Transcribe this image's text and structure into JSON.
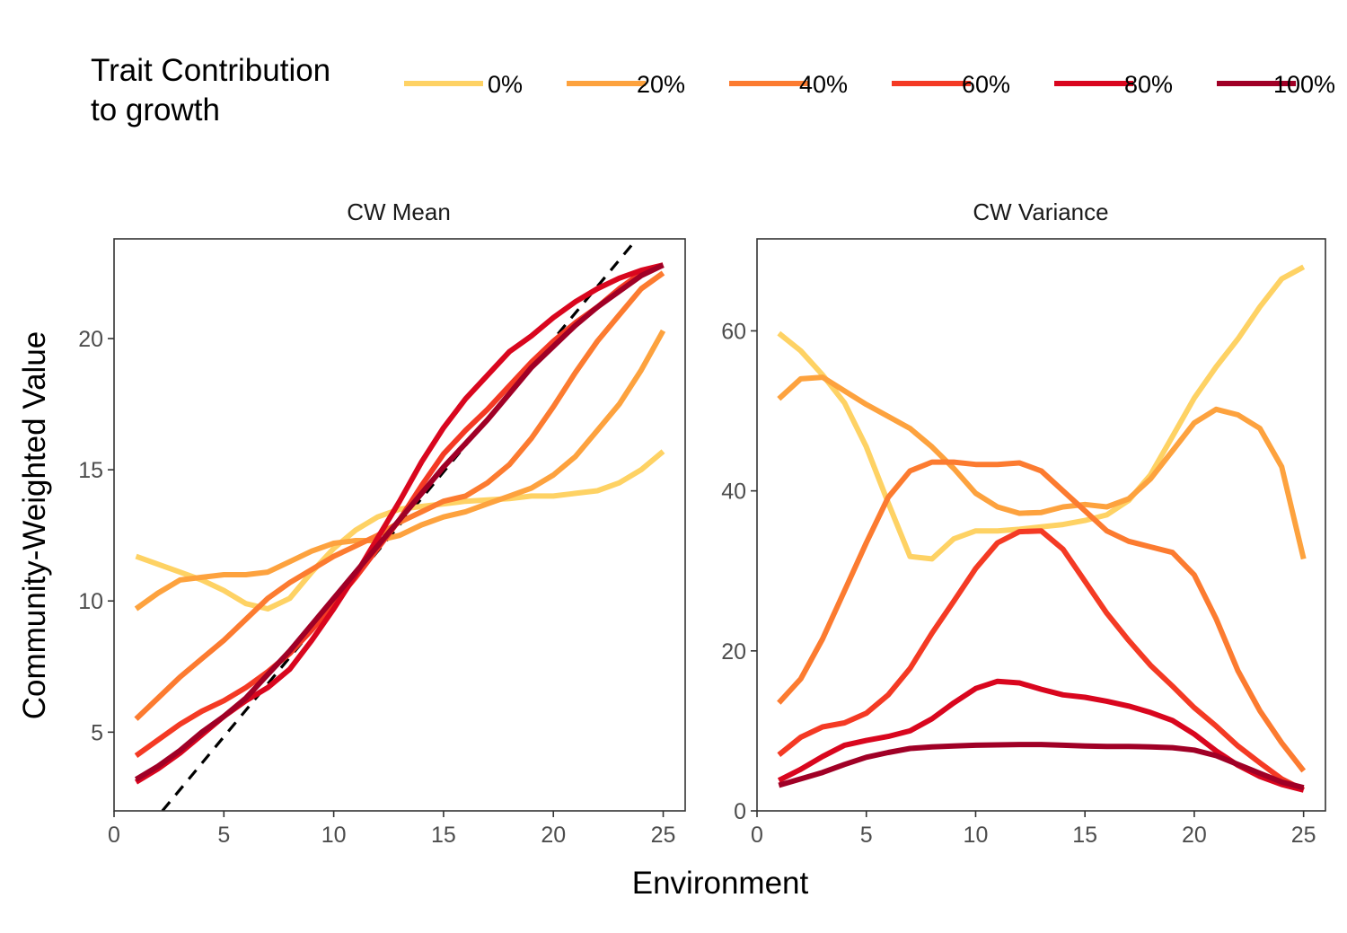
{
  "legend": {
    "title_line1": "Trait Contribution",
    "title_line2": "to growth"
  },
  "x_axis_title": "Environment",
  "y_axis_title": "Community-Weighted Value",
  "colors": {
    "0%": "#FED264",
    "20%": "#FDA23E",
    "40%": "#FC7B30",
    "60%": "#F43A24",
    "80%": "#D9061E",
    "100%": "#A00026",
    "reference_line": "#000000"
  },
  "chart_data": [
    {
      "type": "line",
      "title": "CW Mean",
      "xlim": [
        0,
        26
      ],
      "ylim": [
        2,
        23.8
      ],
      "xticks": [
        0,
        5,
        10,
        15,
        20,
        25
      ],
      "yticks": [
        5,
        10,
        15,
        20
      ],
      "xlabel": "Environment",
      "ylabel": "Community-Weighted Value",
      "grid": false,
      "legend_position": "top",
      "reference_line": {
        "style": "dashed",
        "color": "#000000",
        "points": [
          [
            2.2,
            2.0
          ],
          [
            23.8,
            23.8
          ]
        ]
      },
      "x": [
        1,
        2,
        3,
        4,
        5,
        6,
        7,
        8,
        9,
        10,
        11,
        12,
        13,
        14,
        15,
        16,
        17,
        18,
        19,
        20,
        21,
        22,
        23,
        24,
        25
      ],
      "series": [
        {
          "name": "0%",
          "values": [
            11.7,
            11.4,
            11.1,
            10.8,
            10.4,
            9.9,
            9.7,
            10.1,
            11.1,
            12.0,
            12.7,
            13.2,
            13.5,
            13.6,
            13.7,
            13.8,
            13.85,
            13.9,
            14.0,
            14.0,
            14.1,
            14.2,
            14.5,
            15.0,
            15.7
          ]
        },
        {
          "name": "20%",
          "values": [
            9.7,
            10.3,
            10.8,
            10.9,
            11.0,
            11.0,
            11.1,
            11.5,
            11.9,
            12.2,
            12.3,
            12.3,
            12.5,
            12.9,
            13.2,
            13.4,
            13.7,
            14.0,
            14.3,
            14.8,
            15.5,
            16.5,
            17.5,
            18.8,
            20.3
          ]
        },
        {
          "name": "40%",
          "values": [
            5.5,
            6.3,
            7.1,
            7.8,
            8.5,
            9.3,
            10.1,
            10.7,
            11.2,
            11.7,
            12.1,
            12.5,
            13.0,
            13.4,
            13.8,
            14.0,
            14.5,
            15.2,
            16.2,
            17.4,
            18.7,
            19.9,
            20.9,
            21.9,
            22.5
          ]
        },
        {
          "name": "60%",
          "values": [
            4.1,
            4.7,
            5.3,
            5.8,
            6.2,
            6.7,
            7.3,
            8.0,
            8.9,
            9.9,
            10.9,
            12.0,
            13.1,
            14.4,
            15.6,
            16.5,
            17.3,
            18.2,
            19.1,
            19.9,
            20.6,
            21.2,
            21.9,
            22.5,
            22.8
          ]
        },
        {
          "name": "80%",
          "values": [
            3.1,
            3.6,
            4.2,
            4.9,
            5.6,
            6.2,
            6.7,
            7.4,
            8.5,
            9.7,
            11.0,
            12.4,
            13.8,
            15.3,
            16.6,
            17.7,
            18.6,
            19.5,
            20.1,
            20.8,
            21.4,
            21.9,
            22.3,
            22.6,
            22.8
          ]
        },
        {
          "name": "100%",
          "values": [
            3.2,
            3.7,
            4.3,
            5.0,
            5.6,
            6.3,
            7.2,
            8.1,
            9.1,
            10.1,
            11.1,
            12.1,
            13.1,
            14.1,
            15.1,
            16.0,
            16.9,
            17.9,
            18.9,
            19.7,
            20.5,
            21.2,
            21.8,
            22.4,
            22.8
          ]
        }
      ]
    },
    {
      "type": "line",
      "title": "CW Variance",
      "xlim": [
        0,
        26
      ],
      "ylim": [
        0,
        71.5
      ],
      "xticks": [
        0,
        5,
        10,
        15,
        20,
        25
      ],
      "yticks": [
        0,
        20,
        40,
        60
      ],
      "xlabel": "Environment",
      "grid": false,
      "x": [
        1,
        2,
        3,
        4,
        5,
        6,
        7,
        8,
        9,
        10,
        11,
        12,
        13,
        14,
        15,
        16,
        17,
        18,
        19,
        20,
        21,
        22,
        23,
        24,
        25
      ],
      "series": [
        {
          "name": "0%",
          "values": [
            59.7,
            57.5,
            54.5,
            51.0,
            45.5,
            38.5,
            31.8,
            31.5,
            34.0,
            35.0,
            35.0,
            35.2,
            35.5,
            35.8,
            36.3,
            37.0,
            38.8,
            42.0,
            46.8,
            51.6,
            55.5,
            59.0,
            63.0,
            66.5,
            68.0
          ]
        },
        {
          "name": "20%",
          "values": [
            51.5,
            54.0,
            54.2,
            52.5,
            50.8,
            49.3,
            47.8,
            45.5,
            42.8,
            39.7,
            38.0,
            37.2,
            37.3,
            38.0,
            38.3,
            38.0,
            39.0,
            41.5,
            45.0,
            48.5,
            50.2,
            49.5,
            47.8,
            43.0,
            31.5
          ]
        },
        {
          "name": "40%",
          "values": [
            13.5,
            16.5,
            21.5,
            27.5,
            33.5,
            39.2,
            42.5,
            43.6,
            43.6,
            43.3,
            43.3,
            43.5,
            42.5,
            40.0,
            37.5,
            35.0,
            33.7,
            33.0,
            32.3,
            29.5,
            24.0,
            17.5,
            12.5,
            8.5,
            5.0
          ]
        },
        {
          "name": "60%",
          "values": [
            7.0,
            9.2,
            10.5,
            11.0,
            12.2,
            14.5,
            17.8,
            22.2,
            26.2,
            30.3,
            33.5,
            34.9,
            35.0,
            32.7,
            28.7,
            24.7,
            21.3,
            18.2,
            15.6,
            12.9,
            10.6,
            8.1,
            6.0,
            4.0,
            2.6
          ]
        },
        {
          "name": "80%",
          "values": [
            3.8,
            5.2,
            6.8,
            8.2,
            8.8,
            9.3,
            10.0,
            11.5,
            13.5,
            15.3,
            16.2,
            16.0,
            15.2,
            14.5,
            14.2,
            13.7,
            13.1,
            12.3,
            11.3,
            9.6,
            7.5,
            5.7,
            4.3,
            3.3,
            2.6
          ]
        },
        {
          "name": "100%",
          "values": [
            3.2,
            4.0,
            4.8,
            5.8,
            6.7,
            7.3,
            7.8,
            8.0,
            8.1,
            8.2,
            8.25,
            8.3,
            8.3,
            8.2,
            8.1,
            8.05,
            8.05,
            8.0,
            7.9,
            7.6,
            6.9,
            5.8,
            4.7,
            3.6,
            2.9
          ]
        }
      ]
    }
  ]
}
